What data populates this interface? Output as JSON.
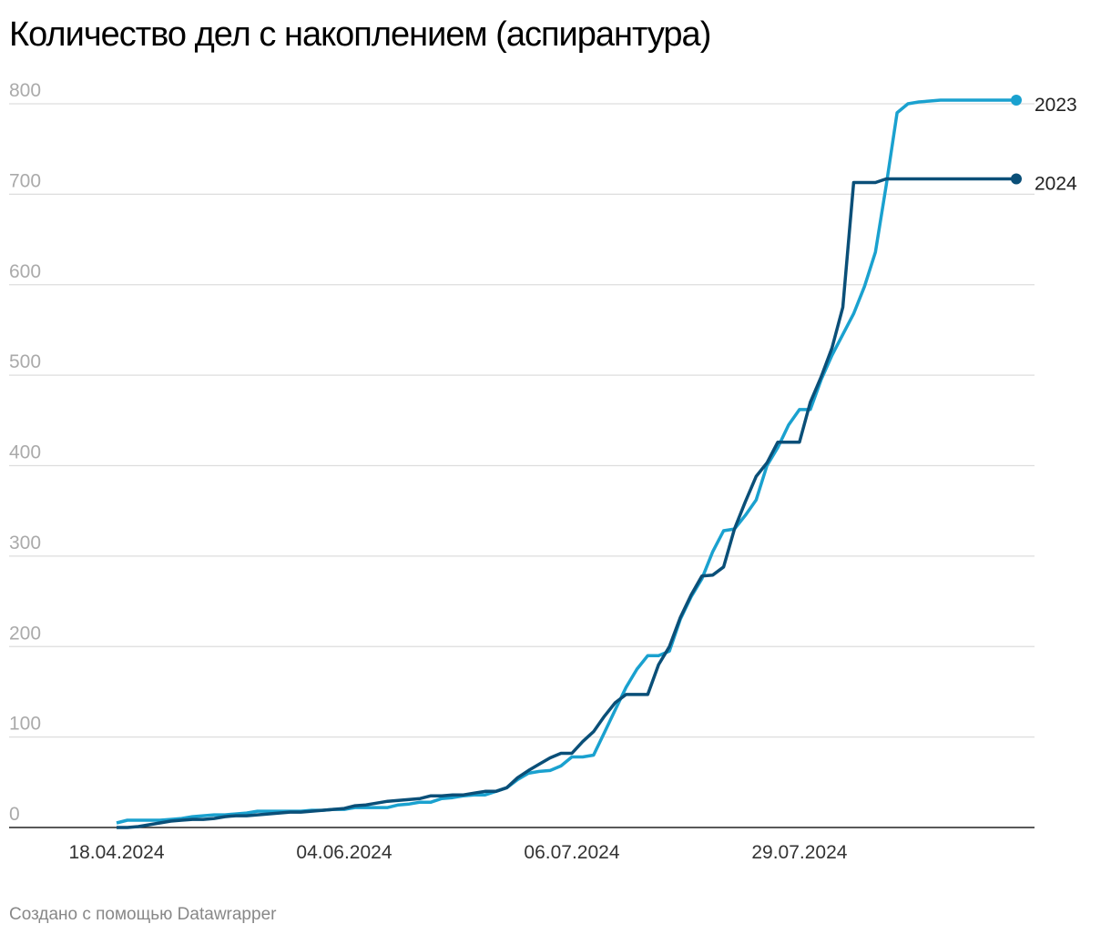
{
  "chart_data": {
    "type": "line",
    "title": "Количество дел с накоплением (аспирантура)",
    "footer": "Создано с помощью Datawrapper",
    "categories": [
      "18.04.2024",
      null,
      null,
      null,
      null,
      null,
      null,
      null,
      null,
      null,
      null,
      null,
      null,
      null,
      null,
      null,
      null,
      null,
      null,
      null,
      null,
      "04.06.2024",
      null,
      null,
      null,
      null,
      null,
      null,
      null,
      null,
      null,
      null,
      null,
      null,
      null,
      null,
      null,
      null,
      null,
      null,
      null,
      null,
      "06.07.2024",
      null,
      null,
      null,
      null,
      null,
      null,
      null,
      null,
      null,
      null,
      null,
      null,
      null,
      null,
      null,
      null,
      null,
      null,
      null,
      null,
      "29.07.2024",
      null,
      null,
      null,
      null,
      null,
      null,
      null,
      null,
      null,
      null,
      null,
      null,
      null,
      null,
      null,
      null,
      null,
      null,
      null,
      null
    ],
    "series": [
      {
        "name": "2023",
        "color": "#1aa1cf",
        "values": [
          5,
          8,
          8,
          8,
          8,
          9,
          10,
          12,
          13,
          14,
          14,
          15,
          16,
          18,
          18,
          18,
          18,
          18,
          19,
          19,
          20,
          20,
          22,
          22,
          22,
          22,
          25,
          26,
          28,
          28,
          32,
          33,
          35,
          36,
          36,
          40,
          44,
          53,
          60,
          62,
          63,
          68,
          78,
          78,
          80,
          105,
          130,
          155,
          175,
          190,
          190,
          195,
          230,
          255,
          275,
          305,
          328,
          330,
          345,
          362,
          400,
          420,
          445,
          462,
          462,
          495,
          522,
          545,
          568,
          598,
          636,
          710,
          790,
          800,
          802,
          803,
          804,
          804,
          804,
          804,
          804,
          804,
          804,
          804
        ]
      },
      {
        "name": "2024",
        "color": "#0a4f78",
        "values": [
          0,
          0,
          1,
          3,
          5,
          7,
          8,
          9,
          9,
          10,
          12,
          13,
          13,
          14,
          15,
          16,
          17,
          17,
          18,
          19,
          20,
          21,
          24,
          25,
          27,
          29,
          30,
          31,
          32,
          35,
          35,
          36,
          36,
          38,
          40,
          40,
          44,
          55,
          63,
          70,
          77,
          82,
          82,
          95,
          106,
          123,
          138,
          147,
          147,
          147,
          180,
          200,
          232,
          257,
          278,
          279,
          288,
          330,
          360,
          388,
          403,
          426,
          426,
          426,
          470,
          498,
          530,
          575,
          713,
          713,
          713,
          717,
          717,
          717,
          717,
          717,
          717,
          717,
          717,
          717,
          717,
          717,
          717,
          717
        ]
      }
    ],
    "ylim": [
      0,
      800
    ],
    "yticks": [
      0,
      100,
      200,
      300,
      400,
      500,
      600,
      700,
      800
    ],
    "grid": true
  }
}
